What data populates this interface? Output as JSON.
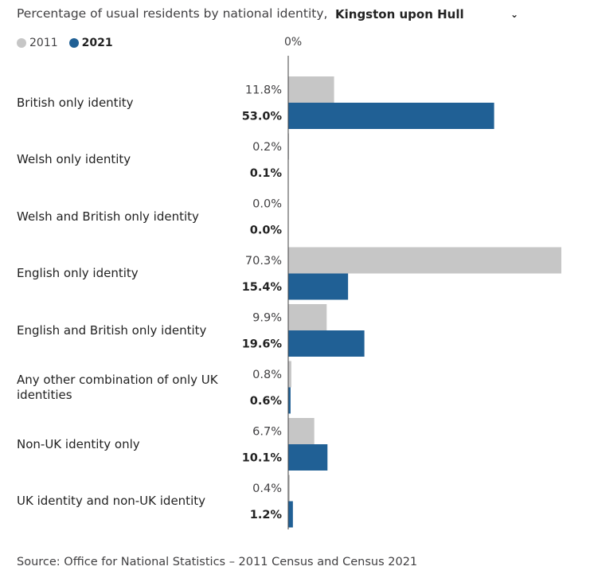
{
  "header": {
    "title": "Percentage of usual residents by national identity,",
    "area_selected": "Kingston upon Hull"
  },
  "legend": [
    {
      "name": "2011",
      "color": "#c6c6c6"
    },
    {
      "name": "2021",
      "color": "#206095"
    }
  ],
  "colors": {
    "axis": "#414042"
  },
  "chart_data": {
    "type": "bar",
    "orientation": "horizontal",
    "title": "Percentage of usual residents by national identity, Kingston upon Hull",
    "axis_zero_label": "0%",
    "xlim": [
      0,
      70.3
    ],
    "categories": [
      "British only identity",
      "Welsh only identity",
      "Welsh and British only identity",
      "English only identity",
      "English and British only identity",
      "Any other combination of only UK identities",
      "Non-UK identity only",
      "UK identity and non-UK identity"
    ],
    "series": [
      {
        "name": "2011",
        "values": [
          11.8,
          0.2,
          0.0,
          70.3,
          9.9,
          0.8,
          6.7,
          0.4
        ],
        "labels": [
          "11.8%",
          "0.2%",
          "0.0%",
          "70.3%",
          "9.9%",
          "0.8%",
          "6.7%",
          "0.4%"
        ]
      },
      {
        "name": "2021",
        "values": [
          53.0,
          0.1,
          0.0,
          15.4,
          19.6,
          0.6,
          10.1,
          1.2
        ],
        "labels": [
          "53.0%",
          "0.1%",
          "0.0%",
          "15.4%",
          "19.6%",
          "0.6%",
          "10.1%",
          "1.2%"
        ]
      }
    ]
  },
  "source": "Source: Office for National Statistics – 2011 Census and Census 2021"
}
